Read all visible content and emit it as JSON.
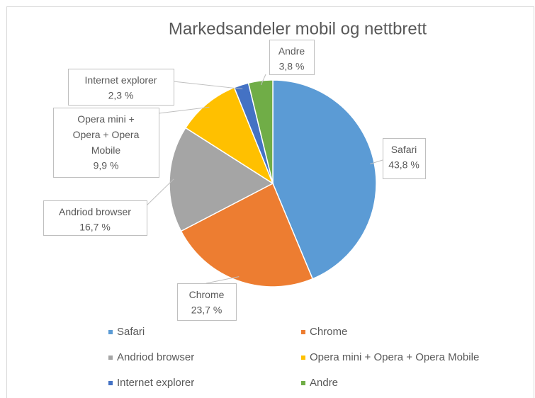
{
  "chart_data": {
    "type": "pie",
    "title": "Markedsandeler mobil og nettbrett",
    "categories": [
      "Safari",
      "Chrome",
      "Andriod browser",
      "Opera mini + Opera + Opera Mobile",
      "Internet explorer",
      "Andre"
    ],
    "values": [
      43.8,
      23.7,
      16.7,
      9.9,
      2.3,
      3.8
    ],
    "value_labels": [
      "43,8 %",
      "23,7 %",
      "16,7 %",
      "9,9 %",
      "2,3 %",
      "3,8 %"
    ],
    "colors": [
      "#5b9bd5",
      "#ed7d31",
      "#a5a5a5",
      "#ffc000",
      "#4472c4",
      "#70ad47"
    ],
    "legend": "bottom"
  }
}
